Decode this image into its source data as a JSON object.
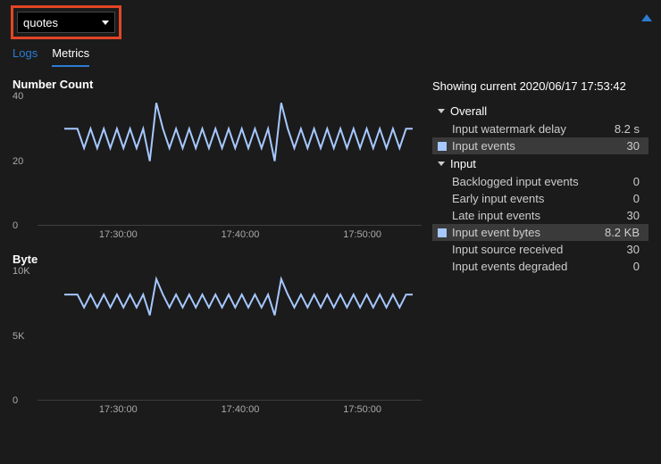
{
  "colors": {
    "background": "#1b1b1b",
    "text": "#d4d4d4",
    "accent_blue": "#2b7cd3",
    "line_color": "#a6c8ff",
    "axis_color": "#606060",
    "highlight_row": "#3a3a3a",
    "highlight_border": "#e34526"
  },
  "header": {
    "dropdown_value": "quotes"
  },
  "tabs": [
    {
      "label": "Logs",
      "active": false
    },
    {
      "label": "Metrics",
      "active": true
    }
  ],
  "charts": [
    {
      "title": "Number Count",
      "type": "line",
      "y_ticks": [
        {
          "label": "40",
          "value": 40
        },
        {
          "label": "20",
          "value": 20
        },
        {
          "label": "0",
          "value": 0
        }
      ],
      "ylim": [
        0,
        40
      ],
      "x_ticks": [
        "17:30:00",
        "17:40:00",
        "17:50:00"
      ],
      "line_color": "#a6c8ff",
      "line_width": 2,
      "baseline_value": 30,
      "series": [
        30,
        30,
        30,
        24,
        30,
        24,
        30,
        24,
        30,
        24,
        30,
        24,
        30,
        20,
        38,
        30,
        24,
        30,
        24,
        30,
        24,
        30,
        24,
        30,
        24,
        30,
        24,
        30,
        24,
        30,
        24,
        30,
        20,
        38,
        30,
        24,
        30,
        24,
        30,
        24,
        30,
        24,
        30,
        24,
        30,
        24,
        30,
        24,
        30,
        24,
        30,
        24,
        30,
        30
      ]
    },
    {
      "title": "Byte",
      "type": "line",
      "y_ticks": [
        {
          "label": "10K",
          "value": 10000
        },
        {
          "label": "5K",
          "value": 5000
        },
        {
          "label": "0",
          "value": 0
        }
      ],
      "ylim": [
        0,
        10000
      ],
      "x_ticks": [
        "17:30:00",
        "17:40:00",
        "17:50:00"
      ],
      "line_color": "#a6c8ff",
      "line_width": 2,
      "baseline_value": 8200,
      "series": [
        8200,
        8200,
        8200,
        7200,
        8200,
        7200,
        8200,
        7200,
        8200,
        7200,
        8200,
        7200,
        8200,
        6600,
        9400,
        8200,
        7200,
        8200,
        7200,
        8200,
        7200,
        8200,
        7200,
        8200,
        7200,
        8200,
        7200,
        8200,
        7200,
        8200,
        7200,
        8200,
        6600,
        9400,
        8200,
        7200,
        8200,
        7200,
        8200,
        7200,
        8200,
        7200,
        8200,
        7200,
        8200,
        7200,
        8200,
        7200,
        8200,
        7200,
        8200,
        7200,
        8200,
        8200
      ]
    }
  ],
  "side": {
    "showing_prefix": "Showing current ",
    "showing_time": "2020/06/17 17:53:42",
    "groups": [
      {
        "name": "Overall",
        "rows": [
          {
            "label": "Input watermark delay",
            "value": "8.2 s",
            "selected": false,
            "swatch": false
          },
          {
            "label": "Input events",
            "value": "30",
            "selected": true,
            "swatch": true
          }
        ]
      },
      {
        "name": "Input",
        "rows": [
          {
            "label": "Backlogged input events",
            "value": "0",
            "selected": false,
            "swatch": false
          },
          {
            "label": "Early input events",
            "value": "0",
            "selected": false,
            "swatch": false
          },
          {
            "label": "Late input events",
            "value": "30",
            "selected": false,
            "swatch": false
          },
          {
            "label": "Input event bytes",
            "value": "8.2 KB",
            "selected": true,
            "swatch": true
          },
          {
            "label": "Input source received",
            "value": "30",
            "selected": false,
            "swatch": false
          },
          {
            "label": "Input events degraded",
            "value": "0",
            "selected": false,
            "swatch": false
          }
        ]
      }
    ]
  }
}
